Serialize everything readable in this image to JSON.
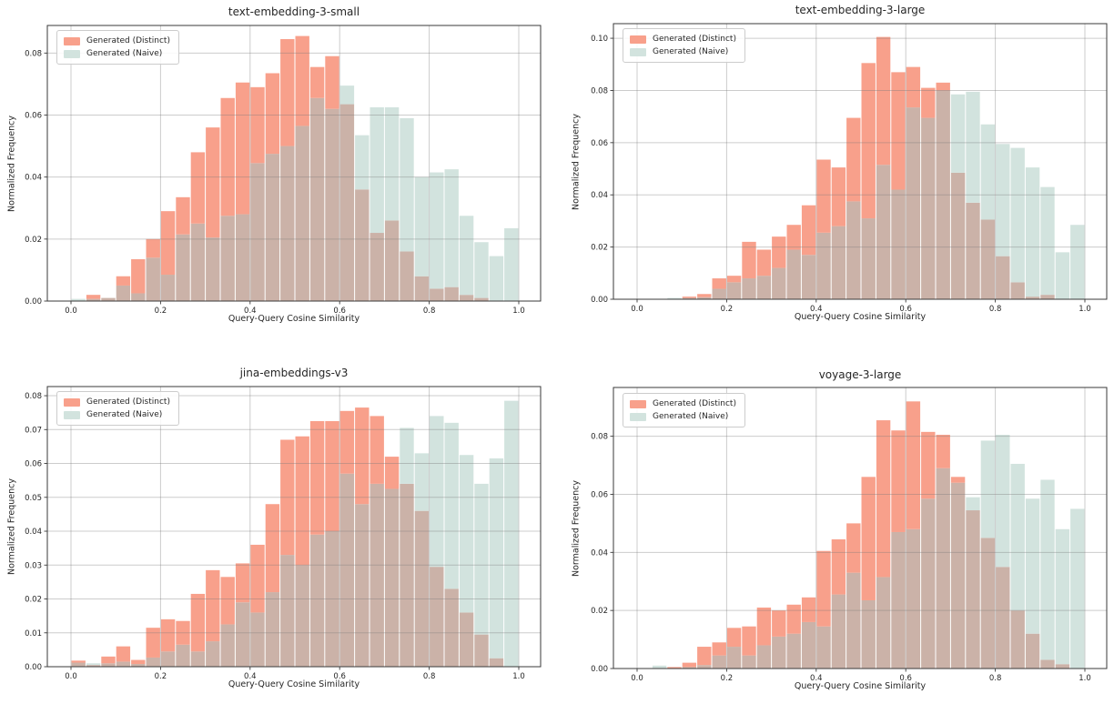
{
  "figure": {
    "background": "#ffffff"
  },
  "colors": {
    "distinct_fill": "#f8a08b",
    "naive_fill": "#d2e3de",
    "overlap_fill": "#cbb2a8",
    "grid": "#c7c7c7",
    "spine": "#3a3a3a",
    "text": "#262626"
  },
  "legend": {
    "distinct_label": "Generated (Distinct)",
    "naive_label": "Generated (Naive)"
  },
  "axes": {
    "xlabel": "Query-Query Cosine Similarity",
    "ylabel": "Normalized Frequency",
    "x_tick_labels": [
      "0.0",
      "0.2",
      "0.4",
      "0.6",
      "0.8",
      "1.0"
    ]
  },
  "chart_data": [
    {
      "type": "bar",
      "subtype": "overlapping-histogram",
      "title": "text-embedding-3-small",
      "xlabel": "Query-Query Cosine Similarity",
      "ylabel": "Normalized Frequency",
      "bin_start": 0.0,
      "bin_width": 0.0333,
      "n_bins": 30,
      "xlim": [
        -0.05,
        1.05
      ],
      "ylim": [
        0,
        0.0889
      ],
      "y_tick_labels": [
        "0.00",
        "0.02",
        "0.04",
        "0.06",
        "0.08"
      ],
      "legend_position": "upper-left",
      "grid": true,
      "series": [
        {
          "name": "Generated (Distinct)",
          "values": [
            0,
            0.002,
            0.001,
            0.008,
            0.0135,
            0.02,
            0.029,
            0.0335,
            0.048,
            0.056,
            0.0655,
            0.0705,
            0.069,
            0.0735,
            0.0845,
            0.0855,
            0.0755,
            0.079,
            0.0635,
            0.036,
            0.022,
            0.026,
            0.016,
            0.008,
            0.004,
            0.0045,
            0.002,
            0.001,
            0,
            0
          ]
        },
        {
          "name": "Generated (Naive)",
          "values": [
            0.0007,
            0.0007,
            0.0012,
            0.005,
            0.0025,
            0.014,
            0.0085,
            0.0215,
            0.025,
            0.0205,
            0.0275,
            0.028,
            0.0445,
            0.0475,
            0.05,
            0.0565,
            0.0655,
            0.062,
            0.0695,
            0.0535,
            0.0625,
            0.0625,
            0.059,
            0.04,
            0.0415,
            0.0425,
            0.0275,
            0.019,
            0.0145,
            0.0235
          ]
        }
      ]
    },
    {
      "type": "bar",
      "subtype": "overlapping-histogram",
      "title": "text-embedding-3-large",
      "xlabel": "Query-Query Cosine Similarity",
      "ylabel": "Normalized Frequency",
      "bin_start": 0.0,
      "bin_width": 0.0333,
      "n_bins": 30,
      "xlim": [
        -0.05,
        1.05
      ],
      "ylim": [
        0,
        0.1056
      ],
      "y_tick_labels": [
        "0.00",
        "0.02",
        "0.04",
        "0.06",
        "0.08",
        "0.10"
      ],
      "legend_position": "upper-left",
      "grid": true,
      "series": [
        {
          "name": "Generated (Distinct)",
          "values": [
            0,
            0,
            0,
            0.001,
            0.002,
            0.008,
            0.009,
            0.022,
            0.019,
            0.024,
            0.0285,
            0.036,
            0.0535,
            0.0505,
            0.0695,
            0.0905,
            0.1005,
            0.087,
            0.089,
            0.081,
            0.083,
            0.0485,
            0.037,
            0.0305,
            0.0165,
            0.0065,
            0.001,
            0.0017,
            0,
            0
          ]
        },
        {
          "name": "Generated (Naive)",
          "values": [
            0,
            0,
            0.0005,
            0.0005,
            0.0008,
            0.004,
            0.0065,
            0.008,
            0.009,
            0.012,
            0.019,
            0.017,
            0.0255,
            0.028,
            0.0375,
            0.031,
            0.0515,
            0.042,
            0.0735,
            0.0695,
            0.08,
            0.0785,
            0.0795,
            0.067,
            0.0595,
            0.058,
            0.0505,
            0.043,
            0.018,
            0.0285
          ]
        }
      ]
    },
    {
      "type": "bar",
      "subtype": "overlapping-histogram",
      "title": "jina-embeddings-v3",
      "xlabel": "Query-Query Cosine Similarity",
      "ylabel": "Normalized Frequency",
      "bin_start": 0.0,
      "bin_width": 0.0333,
      "n_bins": 30,
      "xlim": [
        -0.05,
        1.05
      ],
      "ylim": [
        0,
        0.0827
      ],
      "y_tick_labels": [
        "0.00",
        "0.01",
        "0.02",
        "0.03",
        "0.04",
        "0.05",
        "0.06",
        "0.07",
        "0.08"
      ],
      "legend_position": "upper-left",
      "grid": true,
      "series": [
        {
          "name": "Generated (Distinct)",
          "values": [
            0.0018,
            0.0005,
            0.003,
            0.006,
            0.002,
            0.0115,
            0.014,
            0.0135,
            0.0215,
            0.0285,
            0.0265,
            0.0305,
            0.036,
            0.048,
            0.067,
            0.068,
            0.0725,
            0.0725,
            0.0755,
            0.0765,
            0.074,
            0.062,
            0.054,
            0.046,
            0.0295,
            0.023,
            0.016,
            0.0095,
            0.0025,
            0
          ]
        },
        {
          "name": "Generated (Naive)",
          "values": [
            0.0012,
            0.001,
            0.001,
            0.0015,
            0.0008,
            0.0027,
            0.0045,
            0.0065,
            0.0045,
            0.0075,
            0.0125,
            0.019,
            0.016,
            0.022,
            0.033,
            0.03,
            0.039,
            0.04,
            0.057,
            0.048,
            0.054,
            0.0525,
            0.0705,
            0.063,
            0.074,
            0.072,
            0.0625,
            0.054,
            0.0615,
            0.0785
          ]
        }
      ]
    },
    {
      "type": "bar",
      "subtype": "overlapping-histogram",
      "title": "voyage-3-large",
      "xlabel": "Query-Query Cosine Similarity",
      "ylabel": "Normalized Frequency",
      "bin_start": 0.0,
      "bin_width": 0.0333,
      "n_bins": 30,
      "xlim": [
        -0.05,
        1.05
      ],
      "ylim": [
        0,
        0.0968
      ],
      "y_tick_labels": [
        "0.00",
        "0.02",
        "0.04",
        "0.06",
        "0.08"
      ],
      "legend_position": "upper-left",
      "grid": true,
      "series": [
        {
          "name": "Generated (Distinct)",
          "values": [
            0,
            0,
            0.0005,
            0.002,
            0.0075,
            0.009,
            0.014,
            0.0145,
            0.021,
            0.02,
            0.022,
            0.0245,
            0.0405,
            0.0445,
            0.05,
            0.066,
            0.0855,
            0.082,
            0.092,
            0.0815,
            0.0805,
            0.066,
            0.0545,
            0.045,
            0.035,
            0.02,
            0.012,
            0.003,
            0.0015,
            0
          ]
        },
        {
          "name": "Generated (Naive)",
          "values": [
            0,
            0.001,
            0,
            0.0005,
            0.0012,
            0.0045,
            0.0075,
            0.0045,
            0.008,
            0.011,
            0.012,
            0.016,
            0.0145,
            0.0255,
            0.033,
            0.0235,
            0.0315,
            0.047,
            0.048,
            0.0585,
            0.069,
            0.064,
            0.059,
            0.0785,
            0.0805,
            0.0705,
            0.0585,
            0.065,
            0.048,
            0.055
          ]
        }
      ]
    }
  ]
}
